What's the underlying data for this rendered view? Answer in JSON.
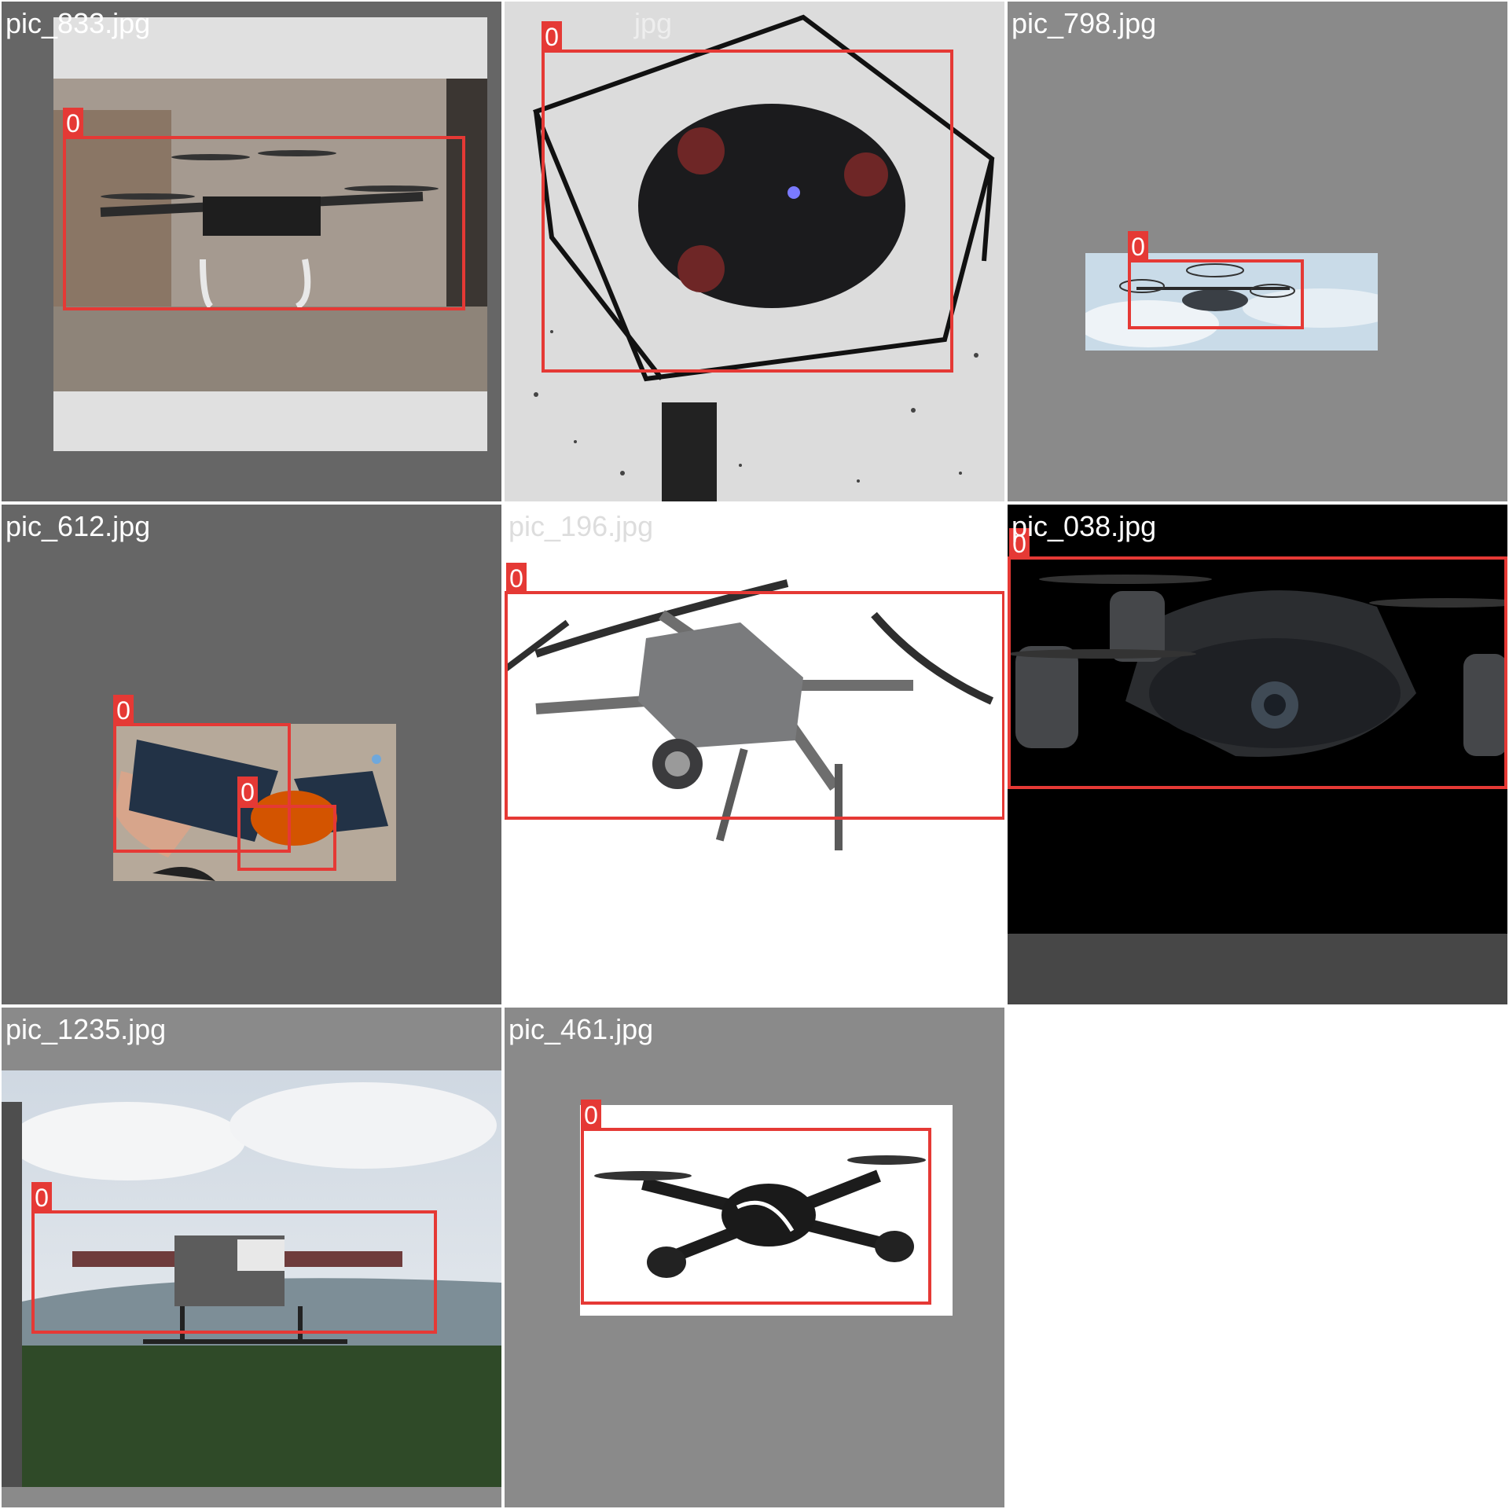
{
  "tiles": [
    {
      "filename": "pic_833.jpg",
      "box_labels": [
        "0"
      ]
    },
    {
      "filename": "jpg",
      "box_labels": [
        "0"
      ]
    },
    {
      "filename": "pic_798.jpg",
      "box_labels": [
        "0"
      ]
    },
    {
      "filename": "pic_612.jpg",
      "box_labels": [
        "0",
        "0"
      ]
    },
    {
      "filename": "pic_196.jpg",
      "box_labels": [
        "0"
      ]
    },
    {
      "filename": "pic_038.jpg",
      "box_labels": [
        "0"
      ]
    },
    {
      "filename": "pic_1235.jpg",
      "box_labels": [
        "0"
      ]
    },
    {
      "filename": "pic_461.jpg",
      "box_labels": [
        "0"
      ]
    }
  ],
  "colors": {
    "box": "#e53935",
    "label_text": "#ffffff",
    "grid_gap": "#ffffff"
  }
}
